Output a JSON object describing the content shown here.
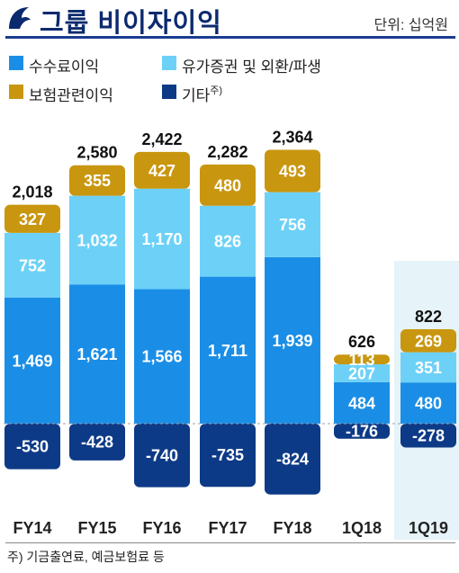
{
  "header": {
    "title": "그룹 비이자이익",
    "unit": "단위: 십억원"
  },
  "legend": [
    {
      "label": "수수료이익",
      "color": "#1a8ee6"
    },
    {
      "label": "유가증권 및 외환/파생",
      "color": "#6dd1f7"
    },
    {
      "label": "보험관련이익",
      "color": "#c9960f"
    },
    {
      "label": "기타",
      "sup": "주)",
      "color": "#0d3a86"
    }
  ],
  "footnote": "주) 기금출연료, 예금보험료 등",
  "chart_data": {
    "type": "bar",
    "stacked": true,
    "categories": [
      "FY14",
      "FY15",
      "FY16",
      "FY17",
      "FY18",
      "1Q18",
      "1Q19"
    ],
    "series": [
      {
        "name": "수수료이익",
        "values": [
          1469,
          1621,
          1566,
          1711,
          1939,
          484,
          480
        ],
        "labels": [
          "1,469",
          "1,621",
          "1,566",
          "1,711",
          "1,939",
          "484",
          "480"
        ]
      },
      {
        "name": "유가증권 및 외환/파생",
        "values": [
          752,
          1032,
          1170,
          826,
          756,
          207,
          351
        ],
        "labels": [
          "752",
          "1,032",
          "1,170",
          "826",
          "756",
          "207",
          "351"
        ]
      },
      {
        "name": "보험관련이익",
        "values": [
          327,
          355,
          427,
          480,
          493,
          113,
          269
        ],
        "labels": [
          "327",
          "355",
          "427",
          "480",
          "493",
          "113",
          "269"
        ]
      },
      {
        "name": "기타",
        "values": [
          -530,
          -428,
          -740,
          -735,
          -824,
          -176,
          -278
        ],
        "labels": [
          "-530",
          "-428",
          "-740",
          "-735",
          "-824",
          "-176",
          "-278"
        ]
      }
    ],
    "totals": [
      2018,
      2580,
      2422,
      2282,
      2364,
      626,
      822
    ],
    "total_labels": [
      "2,018",
      "2,580",
      "2,422",
      "2,282",
      "2,364",
      "626",
      "822"
    ],
    "highlight_category": "1Q19"
  }
}
